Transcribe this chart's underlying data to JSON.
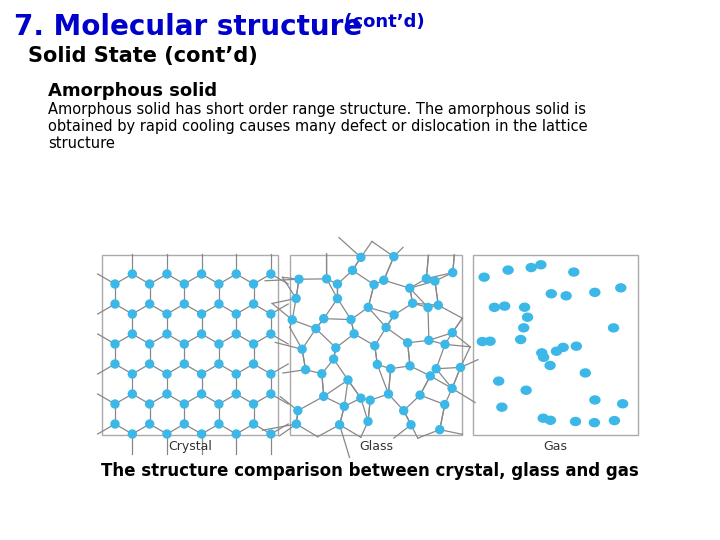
{
  "title_main": "7. Molecular structure",
  "title_contd": " (cont’d)",
  "subtitle": "Solid State (cont’d)",
  "heading": "Amorphous solid",
  "body_line1": "Amorphous solid has short order range structure. The amorphous solid is",
  "body_line2": "obtained by rapid cooling causes many defect or dislocation in the lattice",
  "body_line3": "structure",
  "caption": "The structure comparison between crystal, glass and gas",
  "label_crystal": "Crystal",
  "label_glass": "Glass",
  "label_gas": "Gas",
  "title_color": "#0000CC",
  "subtitle_color": "#000000",
  "heading_color": "#000000",
  "body_color": "#000000",
  "node_color": "#3BB8E8",
  "edge_color": "#888888",
  "bg_color": "#FFFFFF",
  "title_fontsize": 20,
  "title_contd_fontsize": 13,
  "subtitle_fontsize": 15,
  "heading_fontsize": 13,
  "body_fontsize": 10.5,
  "caption_fontsize": 12,
  "label_fontsize": 9
}
